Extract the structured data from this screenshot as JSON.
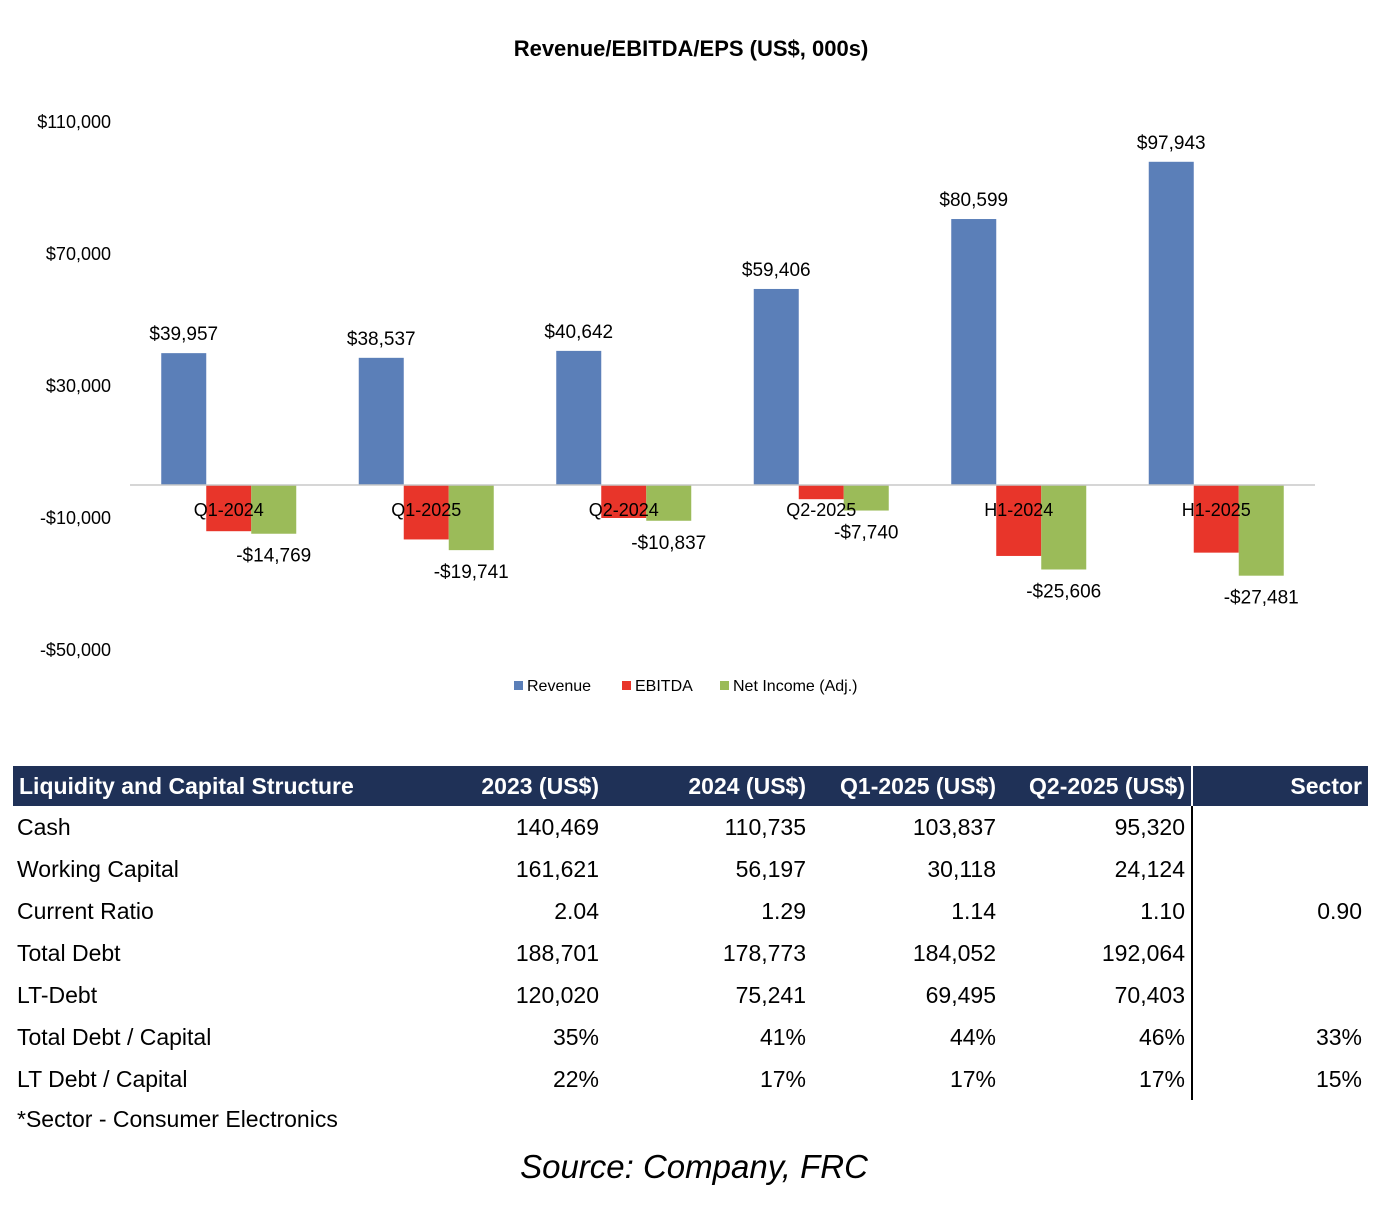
{
  "chart_data": {
    "type": "bar",
    "title": "Revenue/EBITDA/EPS (US$, 000s)",
    "categories": [
      "Q1-2024",
      "Q1-2025",
      "Q2-2024",
      "Q2-2025",
      "H1-2024",
      "H1-2025"
    ],
    "series": [
      {
        "name": "Revenue",
        "color": "#5b7fb8",
        "values": [
          39957,
          38537,
          40642,
          59406,
          80599,
          97943
        ],
        "labels": [
          "$39,957",
          "$38,537",
          "$40,642",
          "$59,406",
          "$80,599",
          "$97,943"
        ]
      },
      {
        "name": "EBITDA",
        "color": "#e8352a",
        "values": [
          -14000,
          -16500,
          -10000,
          -4300,
          -21500,
          -20500
        ],
        "labels": [
          "",
          "",
          "",
          "",
          "",
          ""
        ]
      },
      {
        "name": "Net Income (Adj.)",
        "color": "#9bbb59",
        "values": [
          -14769,
          -19741,
          -10837,
          -7740,
          -25606,
          -27481
        ],
        "labels": [
          "-$14,769",
          "-$19,741",
          "-$10,837",
          "-$7,740",
          "-$25,606",
          "-$27,481"
        ]
      }
    ],
    "ylim": [
      -50000,
      110000
    ],
    "yticks": [
      110000,
      70000,
      30000,
      -10000,
      -50000
    ],
    "ytick_labels": [
      "$110,000",
      "$70,000",
      "$30,000",
      "-$10,000",
      "-$50,000"
    ],
    "grid": false,
    "legend": "bottom"
  },
  "table": {
    "headers": [
      "Liquidity and Capital Structure",
      "2023 (US$)",
      "2024 (US$)",
      "Q1-2025 (US$)",
      "Q2-2025 (US$)",
      "Sector"
    ],
    "rows": [
      [
        "Cash",
        "140,469",
        "110,735",
        "103,837",
        "95,320",
        ""
      ],
      [
        "Working Capital",
        "161,621",
        "56,197",
        "30,118",
        "24,124",
        ""
      ],
      [
        "Current Ratio",
        "2.04",
        "1.29",
        "1.14",
        "1.10",
        "0.90"
      ],
      [
        "Total Debt",
        "188,701",
        "178,773",
        "184,052",
        "192,064",
        ""
      ],
      [
        "LT-Debt",
        "120,020",
        "75,241",
        "69,495",
        "70,403",
        ""
      ],
      [
        "Total Debt / Capital",
        "35%",
        "41%",
        "44%",
        "46%",
        "33%"
      ],
      [
        "LT Debt / Capital",
        "22%",
        "17%",
        "17%",
        "17%",
        "15%"
      ]
    ],
    "footnote": "*Sector - Consumer Electronics"
  },
  "source": "Source: Company, FRC"
}
